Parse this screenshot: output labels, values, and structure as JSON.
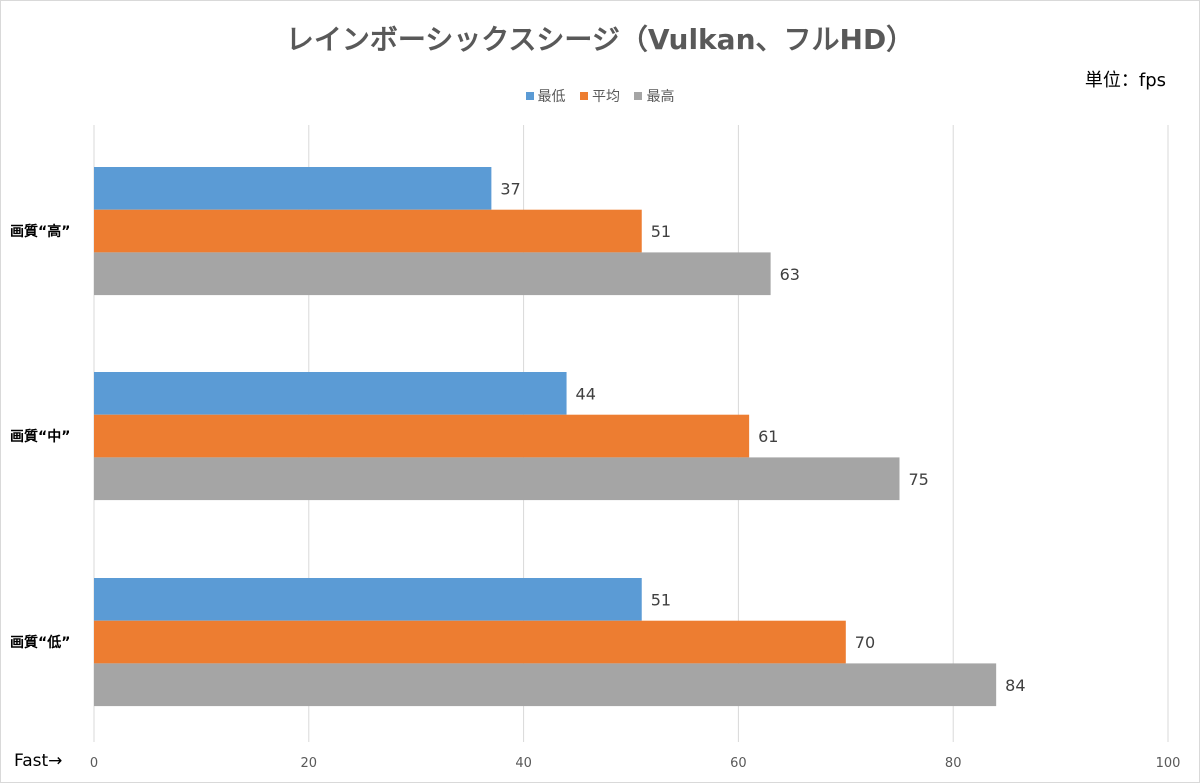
{
  "chart_data": {
    "type": "bar",
    "orientation": "horizontal",
    "title": "レインボーシックスシージ（Vulkan、フルHD）",
    "unit": "単位：fps",
    "categories": [
      "画質“高”",
      "画質“中”",
      "画質“低”"
    ],
    "series": [
      {
        "name": "最低",
        "color": "#5b9bd5",
        "values": [
          37,
          44,
          51
        ]
      },
      {
        "name": "平均",
        "color": "#ed7d31",
        "values": [
          51,
          61,
          70
        ]
      },
      {
        "name": "最高",
        "color": "#a5a5a5",
        "values": [
          63,
          75,
          84
        ]
      }
    ],
    "xlim": [
      0,
      100
    ],
    "xticks": [
      0,
      20,
      40,
      60,
      80,
      100
    ],
    "grid": true,
    "legend_position": "top",
    "axis_note": "Fast→"
  }
}
